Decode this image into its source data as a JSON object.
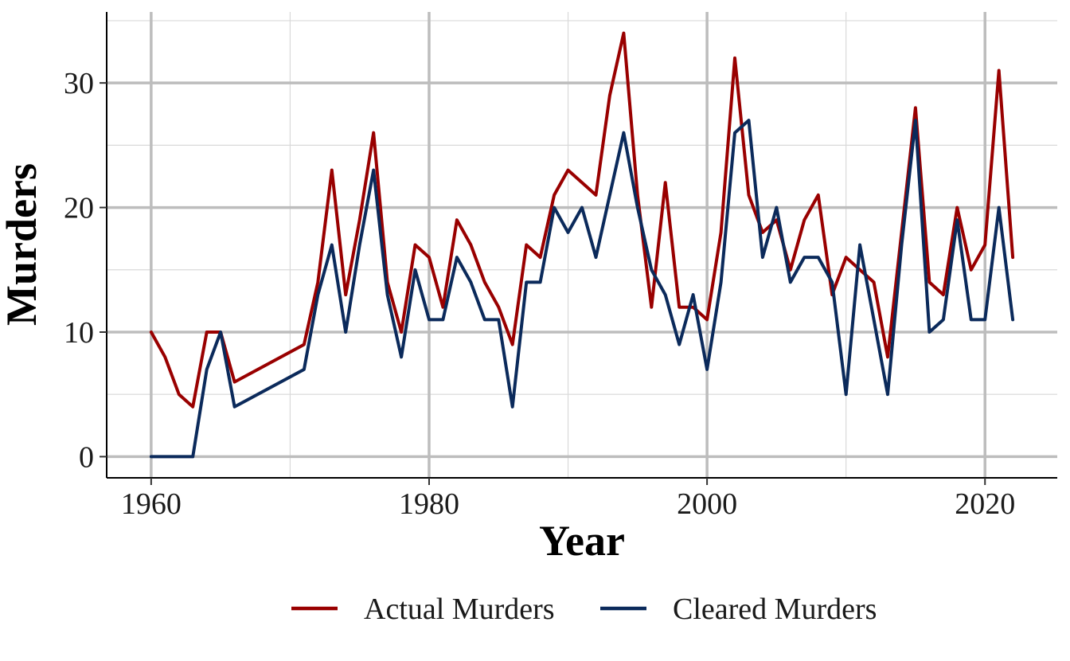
{
  "chart_data": {
    "type": "line",
    "title": "",
    "xlabel": "Year",
    "ylabel": "Murders",
    "xlim": [
      1956.8,
      2025.2
    ],
    "ylim": [
      -1.7,
      35.7
    ],
    "xticks": [
      1960,
      1980,
      2000,
      2020
    ],
    "yticks": [
      0,
      10,
      20,
      30
    ],
    "grid": true,
    "legend_position": "bottom",
    "x": [
      1960,
      1961,
      1962,
      1963,
      1964,
      1965,
      1966,
      1971,
      1972,
      1973,
      1974,
      1975,
      1976,
      1977,
      1978,
      1979,
      1980,
      1981,
      1982,
      1983,
      1984,
      1985,
      1986,
      1987,
      1988,
      1989,
      1990,
      1991,
      1992,
      1993,
      1994,
      1995,
      1996,
      1997,
      1998,
      1999,
      2000,
      2001,
      2002,
      2003,
      2004,
      2005,
      2006,
      2007,
      2008,
      2009,
      2010,
      2011,
      2012,
      2013,
      2014,
      2015,
      2016,
      2017,
      2018,
      2019,
      2020,
      2021,
      2022
    ],
    "series": [
      {
        "name": "Actual Murders",
        "color": "#990000",
        "values": [
          10,
          8,
          5,
          4,
          10,
          10,
          6,
          9,
          14,
          23,
          13,
          19,
          26,
          14,
          10,
          17,
          16,
          12,
          19,
          17,
          14,
          12,
          9,
          17,
          16,
          21,
          23,
          22,
          21,
          29,
          34,
          21,
          12,
          22,
          12,
          12,
          11,
          18,
          32,
          21,
          18,
          19,
          15,
          19,
          21,
          13,
          16,
          15,
          14,
          8,
          18,
          28,
          14,
          13,
          20,
          15,
          17,
          31,
          16
        ]
      },
      {
        "name": "Cleared Murders",
        "color": "#0b2a5b",
        "values": [
          0,
          0,
          0,
          0,
          7,
          10,
          4,
          7,
          13,
          17,
          10,
          17,
          23,
          13,
          8,
          15,
          11,
          11,
          16,
          14,
          11,
          11,
          4,
          14,
          14,
          20,
          18,
          20,
          16,
          21,
          26,
          20,
          15,
          13,
          9,
          13,
          7,
          14,
          26,
          27,
          16,
          20,
          14,
          16,
          16,
          14,
          5,
          17,
          11,
          5,
          17,
          27,
          10,
          11,
          19,
          11,
          11,
          20,
          11
        ]
      }
    ]
  }
}
